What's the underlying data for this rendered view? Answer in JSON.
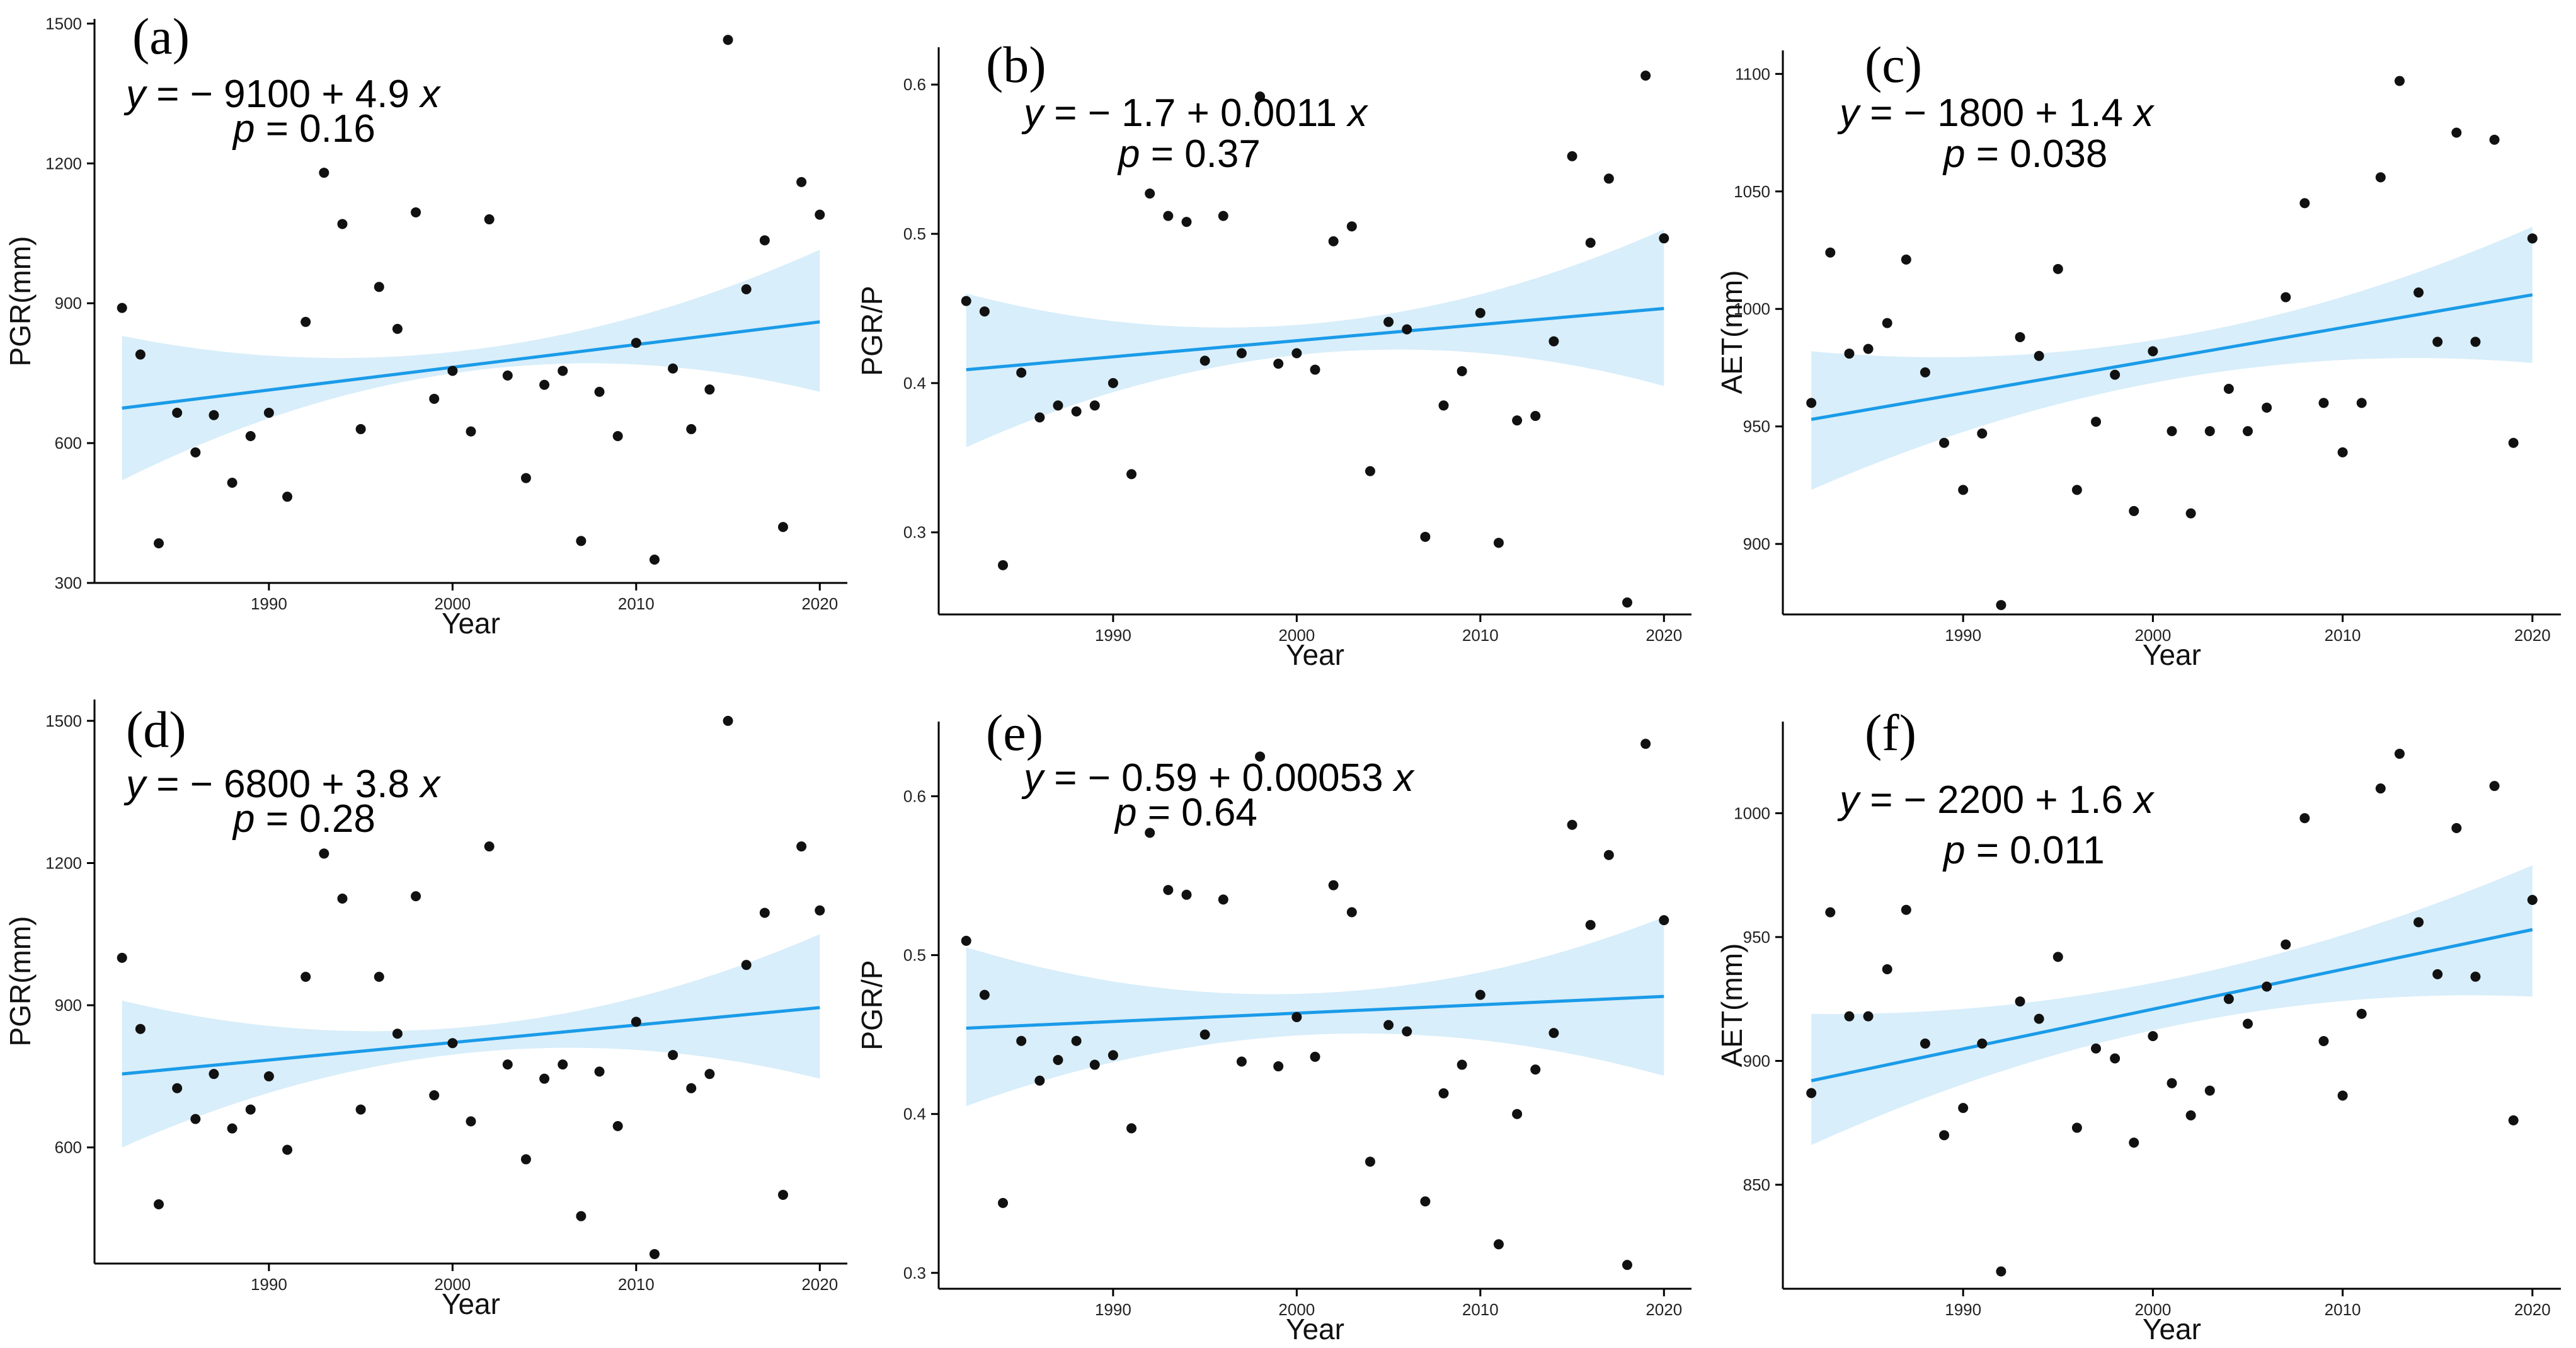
{
  "chart_data": [
    {
      "type": "scatter",
      "panel_label": "(a)",
      "xlabel": "Year",
      "ylabel": "PGR(mm)",
      "xlim": [
        1980.5,
        2021.5
      ],
      "ylim": [
        300,
        1510
      ],
      "xticks": [
        1990,
        2000,
        2010,
        2020
      ],
      "yticks": [
        300,
        600,
        900,
        1200,
        1500
      ],
      "equation": "y = − 9100 + 4.9 x",
      "p_value": "p = 0.16",
      "x": [
        1982,
        1983,
        1984,
        1985,
        1986,
        1987,
        1988,
        1989,
        1990,
        1991,
        1992,
        1993,
        1994,
        1995,
        1996,
        1997,
        1998,
        1999,
        2000,
        2001,
        2002,
        2003,
        2004,
        2005,
        2006,
        2007,
        2008,
        2009,
        2010,
        2011,
        2012,
        2013,
        2014,
        2015,
        2016,
        2017,
        2018,
        2019,
        2020
      ],
      "y": [
        890,
        790,
        385,
        665,
        580,
        660,
        515,
        615,
        665,
        485,
        860,
        1180,
        1070,
        630,
        935,
        845,
        1095,
        695,
        755,
        625,
        1080,
        745,
        525,
        725,
        755,
        390,
        710,
        615,
        815,
        350,
        760,
        630,
        715,
        1465,
        930,
        1035,
        420,
        1160,
        1090
      ],
      "trend": {
        "start": [
          1982,
          675
        ],
        "end": [
          2020,
          860
        ],
        "ci_lower": [
          [
            1982,
            520
          ],
          [
            2001,
            755
          ],
          [
            2020,
            710
          ]
        ],
        "ci_upper": [
          [
            1982,
            830
          ],
          [
            2001,
            800
          ],
          [
            2020,
            1015
          ]
        ]
      }
    },
    {
      "type": "scatter",
      "panel_label": "(b)",
      "xlabel": "Year",
      "ylabel": "PGR/P",
      "xlim": [
        1980.5,
        2021.5
      ],
      "ylim": [
        0.245,
        0.625
      ],
      "xticks": [
        1990,
        2000,
        2010,
        2020
      ],
      "yticks": [
        0.3,
        0.4,
        0.5,
        0.6
      ],
      "equation": "y = − 1.7 + 0.0011 x",
      "p_value": "p = 0.37",
      "x": [
        1982,
        1983,
        1984,
        1985,
        1986,
        1987,
        1988,
        1989,
        1990,
        1991,
        1992,
        1993,
        1994,
        1995,
        1996,
        1997,
        1998,
        1999,
        2000,
        2001,
        2002,
        2003,
        2004,
        2005,
        2006,
        2007,
        2008,
        2009,
        2010,
        2011,
        2012,
        2013,
        2014,
        2015,
        2016,
        2017,
        2018,
        2019,
        2020
      ],
      "y": [
        0.455,
        0.448,
        0.278,
        0.407,
        0.377,
        0.385,
        0.381,
        0.385,
        0.4,
        0.339,
        0.527,
        0.512,
        0.508,
        0.415,
        0.512,
        0.42,
        0.592,
        0.413,
        0.42,
        0.409,
        0.495,
        0.505,
        0.341,
        0.441,
        0.436,
        0.297,
        0.385,
        0.408,
        0.447,
        0.293,
        0.375,
        0.378,
        0.428,
        0.552,
        0.494,
        0.537,
        0.253,
        0.606,
        0.497
      ],
      "trend": {
        "start": [
          1982,
          0.409
        ],
        "end": [
          2020,
          0.45
        ],
        "ci_lower": [
          [
            1982,
            0.357
          ],
          [
            2001,
            0.42
          ],
          [
            2020,
            0.398
          ]
        ],
        "ci_upper": [
          [
            1982,
            0.46
          ],
          [
            2001,
            0.44
          ],
          [
            2020,
            0.503
          ]
        ]
      }
    },
    {
      "type": "scatter",
      "panel_label": "(c)",
      "xlabel": "Year",
      "ylabel": "AET(mm)",
      "xlim": [
        1980.5,
        2021.5
      ],
      "ylim": [
        870,
        1110
      ],
      "xticks": [
        1990,
        2000,
        2010,
        2020
      ],
      "yticks": [
        900,
        950,
        1000,
        1050,
        1100
      ],
      "equation": "y = − 1800 + 1.4 x",
      "p_value": "p = 0.038",
      "x": [
        1982,
        1983,
        1984,
        1985,
        1986,
        1987,
        1988,
        1989,
        1990,
        1991,
        1992,
        1993,
        1994,
        1995,
        1996,
        1997,
        1998,
        1999,
        2000,
        2001,
        2002,
        2003,
        2004,
        2005,
        2006,
        2007,
        2008,
        2009,
        2010,
        2011,
        2012,
        2013,
        2014,
        2015,
        2016,
        2017,
        2018,
        2019,
        2020
      ],
      "y": [
        960,
        1024,
        981,
        983,
        994,
        1021,
        973,
        943,
        923,
        947,
        874,
        988,
        980,
        1017,
        923,
        952,
        972,
        914,
        982,
        948,
        913,
        948,
        966,
        948,
        958,
        1005,
        1045,
        960,
        939,
        960,
        1056,
        1097,
        1007,
        986,
        1075,
        986,
        1072,
        943,
        1030
      ],
      "trend": {
        "start": [
          1982,
          953
        ],
        "end": [
          2020,
          1006
        ],
        "ci_lower": [
          [
            1982,
            923
          ],
          [
            2001,
            970
          ],
          [
            2020,
            977
          ]
        ],
        "ci_upper": [
          [
            1982,
            982
          ],
          [
            2001,
            988
          ],
          [
            2020,
            1035
          ]
        ]
      }
    },
    {
      "type": "scatter",
      "panel_label": "(d)",
      "xlabel": "Year",
      "ylabel": "PGR(mm)",
      "xlim": [
        1980.5,
        2021.5
      ],
      "ylim": [
        355,
        1545
      ],
      "xticks": [
        1990,
        2000,
        2010,
        2020
      ],
      "yticks": [
        600,
        900,
        1200,
        1500
      ],
      "equation": "y = − 6800 + 3.8 x",
      "p_value": "p = 0.28",
      "x": [
        1982,
        1983,
        1984,
        1985,
        1986,
        1987,
        1988,
        1989,
        1990,
        1991,
        1992,
        1993,
        1994,
        1995,
        1996,
        1997,
        1998,
        1999,
        2000,
        2001,
        2002,
        2003,
        2004,
        2005,
        2006,
        2007,
        2008,
        2009,
        2010,
        2011,
        2012,
        2013,
        2014,
        2015,
        2016,
        2017,
        2018,
        2019,
        2020
      ],
      "y": [
        1000,
        850,
        480,
        725,
        660,
        755,
        640,
        680,
        750,
        595,
        960,
        1220,
        1125,
        680,
        960,
        840,
        1130,
        710,
        820,
        655,
        1235,
        775,
        575,
        745,
        775,
        455,
        760,
        645,
        865,
        375,
        795,
        725,
        755,
        1500,
        985,
        1095,
        500,
        1235,
        1100
      ],
      "trend": {
        "start": [
          1982,
          755
        ],
        "end": [
          2020,
          895
        ],
        "ci_lower": [
          [
            1982,
            600
          ],
          [
            2001,
            800
          ],
          [
            2020,
            745
          ]
        ],
        "ci_upper": [
          [
            1982,
            910
          ],
          [
            2001,
            855
          ],
          [
            2020,
            1050
          ]
        ]
      }
    },
    {
      "type": "scatter",
      "panel_label": "(e)",
      "xlabel": "Year",
      "ylabel": "PGR/P",
      "xlim": [
        1980.5,
        2021.5
      ],
      "ylim": [
        0.29,
        0.647
      ],
      "xticks": [
        1990,
        2000,
        2010,
        2020
      ],
      "yticks": [
        0.3,
        0.4,
        0.5,
        0.6
      ],
      "equation": "y = − 0.59 + 0.00053 x",
      "p_value": "p = 0.64",
      "x": [
        1982,
        1983,
        1984,
        1985,
        1986,
        1987,
        1988,
        1989,
        1990,
        1991,
        1992,
        1993,
        1994,
        1995,
        1996,
        1997,
        1998,
        1999,
        2000,
        2001,
        2002,
        2003,
        2004,
        2005,
        2006,
        2007,
        2008,
        2009,
        2010,
        2011,
        2012,
        2013,
        2014,
        2015,
        2016,
        2017,
        2018,
        2019,
        2020
      ],
      "y": [
        0.509,
        0.475,
        0.344,
        0.446,
        0.421,
        0.434,
        0.446,
        0.431,
        0.437,
        0.391,
        0.577,
        0.541,
        0.538,
        0.45,
        0.535,
        0.433,
        0.625,
        0.43,
        0.461,
        0.436,
        0.544,
        0.527,
        0.37,
        0.456,
        0.452,
        0.345,
        0.413,
        0.431,
        0.475,
        0.318,
        0.4,
        0.428,
        0.451,
        0.582,
        0.519,
        0.563,
        0.305,
        0.633,
        0.522
      ],
      "trend": {
        "start": [
          1982,
          0.454
        ],
        "end": [
          2020,
          0.474
        ],
        "ci_lower": [
          [
            1982,
            0.405
          ],
          [
            2001,
            0.45
          ],
          [
            2020,
            0.424
          ]
        ],
        "ci_upper": [
          [
            1982,
            0.505
          ],
          [
            2001,
            0.476
          ],
          [
            2020,
            0.524
          ]
        ]
      }
    },
    {
      "type": "scatter",
      "panel_label": "(f)",
      "xlabel": "Year",
      "ylabel": "AET(mm)",
      "xlim": [
        1980.5,
        2021.5
      ],
      "ylim": [
        808,
        1037
      ],
      "xticks": [
        1990,
        2000,
        2010,
        2020
      ],
      "yticks": [
        850,
        900,
        950,
        1000
      ],
      "equation": "y = − 2200 + 1.6 x",
      "p_value": "p = 0.011",
      "x": [
        1982,
        1983,
        1984,
        1985,
        1986,
        1987,
        1988,
        1989,
        1990,
        1991,
        1992,
        1993,
        1994,
        1995,
        1996,
        1997,
        1998,
        1999,
        2000,
        2001,
        2002,
        2003,
        2004,
        2005,
        2006,
        2007,
        2008,
        2009,
        2010,
        2011,
        2012,
        2013,
        2014,
        2015,
        2016,
        2017,
        2018,
        2019,
        2020
      ],
      "y": [
        887,
        960,
        918,
        918,
        937,
        961,
        907,
        870,
        881,
        907,
        815,
        924,
        917,
        942,
        873,
        905,
        901,
        867,
        910,
        891,
        878,
        888,
        925,
        915,
        930,
        947,
        998,
        908,
        886,
        919,
        1010,
        1024,
        956,
        935,
        994,
        934,
        1011,
        876,
        965
      ],
      "trend": {
        "start": [
          1982,
          892
        ],
        "end": [
          2020,
          953
        ],
        "ci_lower": [
          [
            1982,
            866
          ],
          [
            2001,
            914
          ],
          [
            2020,
            926
          ]
        ],
        "ci_upper": [
          [
            1982,
            919
          ],
          [
            2001,
            933
          ],
          [
            2020,
            979
          ]
        ]
      }
    }
  ],
  "colors": {
    "points": "#111111",
    "trend_line": "#1a9be8",
    "confidence_band": "#d8eefa",
    "axis": "#000000"
  }
}
